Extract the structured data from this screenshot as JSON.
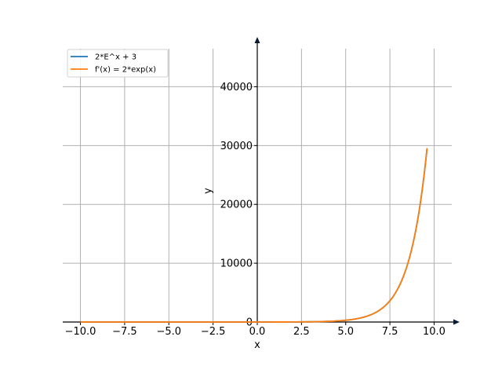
{
  "chart_data": {
    "type": "line",
    "title": "",
    "xlabel": "x",
    "ylabel": "y",
    "xlim": [
      -11,
      11
    ],
    "ylim": [
      0,
      47000
    ],
    "grid": true,
    "legend_position": "top-left",
    "xticks": [
      -10,
      -7.5,
      -5,
      -2.5,
      0,
      2.5,
      5,
      7.5,
      10
    ],
    "xtick_labels": [
      "−10.0",
      "−7.5",
      "−5.0",
      "−2.5",
      "0.0",
      "2.5",
      "5.0",
      "7.5",
      "10.0"
    ],
    "yticks": [
      0,
      10000,
      20000,
      30000,
      40000
    ],
    "ytick_labels": [
      "0",
      "10000",
      "20000",
      "30000",
      "40000"
    ],
    "series": [
      {
        "name": "2*E^x + 3",
        "color": "#1f77b4",
        "x": [
          -10,
          -7.5,
          -5,
          -2.5,
          0,
          2,
          4,
          5,
          6,
          6.5,
          7,
          7.5,
          8,
          8.5,
          9,
          9.3,
          9.6
        ],
        "y": [
          3,
          3,
          3,
          3.2,
          5,
          17.8,
          112,
          300,
          810,
          1336,
          2196,
          3619,
          5965,
          9833,
          16209,
          21881,
          29538
        ]
      },
      {
        "name": "f'(x) = 2*exp(x)",
        "color": "#ff7f0e",
        "x": [
          -10,
          -7.5,
          -5,
          -2.5,
          0,
          2,
          4,
          5,
          6,
          6.5,
          7,
          7.5,
          8,
          8.5,
          9,
          9.3,
          9.6
        ],
        "y": [
          0,
          0,
          0,
          0.2,
          2,
          14.8,
          109,
          297,
          807,
          1333,
          2193,
          3616,
          5962,
          9830,
          16206,
          21878,
          29535
        ]
      }
    ]
  }
}
